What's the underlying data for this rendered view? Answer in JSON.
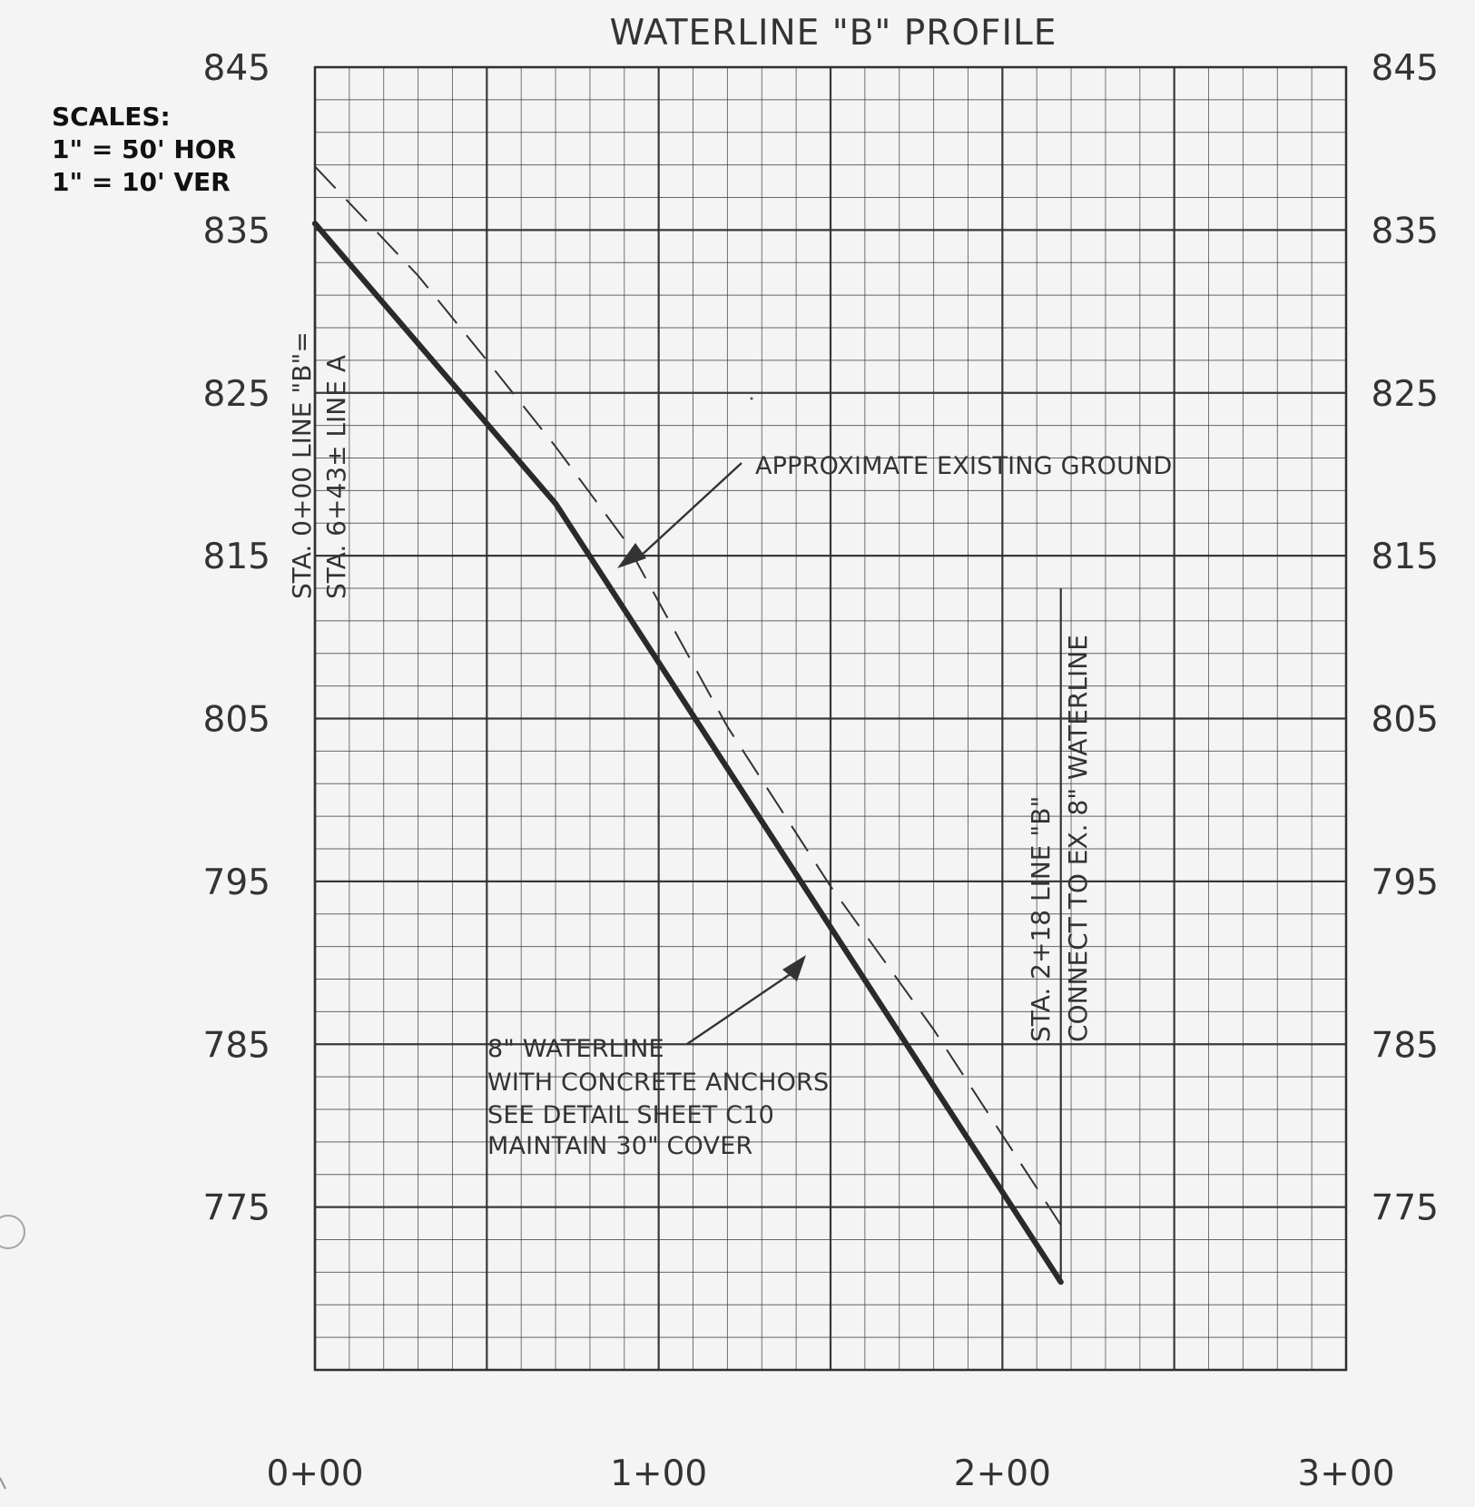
{
  "chart_data": {
    "type": "line",
    "title": "WATERLINE \"B\" PROFILE",
    "scale_notes": [
      "SCALES:",
      "1\" = 50' HOR",
      "1\" = 10' VER"
    ],
    "x_axis": {
      "unit": "feet (station)",
      "range": [
        0,
        300
      ],
      "ticks": [
        {
          "value": 0,
          "label": "0+00"
        },
        {
          "value": 100,
          "label": "1+00"
        },
        {
          "value": 200,
          "label": "2+00"
        },
        {
          "value": 300,
          "label": "3+00"
        }
      ]
    },
    "y_axis": {
      "unit": "elevation (ft)",
      "range": [
        765,
        845
      ],
      "ticks": [
        845,
        835,
        825,
        815,
        805,
        795,
        785,
        775
      ]
    },
    "grid": true,
    "series": [
      {
        "key": "waterline",
        "style": "solid-heavy",
        "x": [
          0,
          70,
          217
        ],
        "y": [
          835.4,
          818.2,
          770.4
        ]
      },
      {
        "key": "existing-ground",
        "style": "dashed",
        "x": [
          0,
          30,
          50,
          70,
          90,
          120,
          150,
          180,
          217
        ],
        "y": [
          838.9,
          832.2,
          827.0,
          821.7,
          816.0,
          804.5,
          794.7,
          785.9,
          773.9
        ]
      }
    ],
    "vertical_markers": [
      {
        "station": 0,
        "top_elevation": 835.4
      },
      {
        "station": 217,
        "top_elevation": 813.0,
        "bottom_elevation": 770.4
      }
    ],
    "annotations": [
      {
        "key": "start-station",
        "lines": [
          "STA. 0+00 LINE \"B\"=",
          "STA. 6+43± LINE A"
        ]
      },
      {
        "key": "ground-label",
        "text": "APPROXIMATE EXISTING GROUND"
      },
      {
        "key": "waterline-note",
        "lines": [
          "8\" WATERLINE",
          "WITH CONCRETE ANCHORS",
          "SEE DETAIL SHEET C10",
          "MAINTAIN 30\" COVER"
        ]
      },
      {
        "key": "end-station",
        "lines": [
          "STA. 2+18 LINE \"B\"",
          "CONNECT TO EX. 8\" WATERLINE"
        ]
      }
    ],
    "colors": {
      "paper": "#f4f4f4",
      "grid": "#2f2f2f",
      "ink": "#2a2a2a",
      "text": "#333333"
    }
  }
}
